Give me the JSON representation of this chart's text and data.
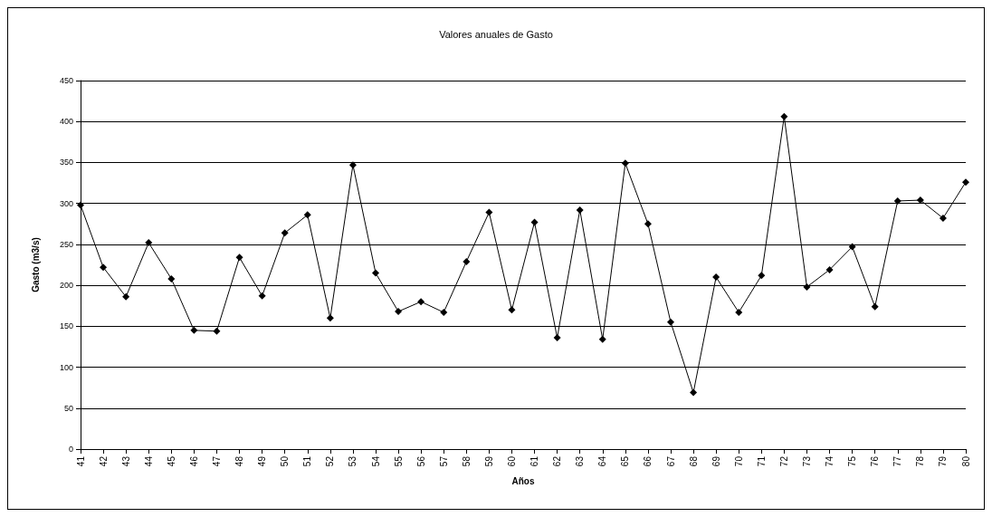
{
  "chart_data": {
    "type": "line",
    "title": "Valores anuales de Gasto",
    "xlabel": "Años",
    "ylabel": "Gasto (m3/s)",
    "categories": [
      "41",
      "42",
      "43",
      "44",
      "45",
      "46",
      "47",
      "48",
      "49",
      "50",
      "51",
      "52",
      "53",
      "54",
      "55",
      "56",
      "57",
      "58",
      "59",
      "60",
      "61",
      "62",
      "63",
      "64",
      "65",
      "66",
      "67",
      "68",
      "69",
      "70",
      "71",
      "72",
      "73",
      "74",
      "75",
      "76",
      "77",
      "78",
      "79",
      "80"
    ],
    "series": [
      {
        "color": "#000000",
        "values": [
          298,
          222,
          186,
          252,
          208,
          145,
          144,
          234,
          187,
          264,
          286,
          160,
          347,
          215,
          168,
          180,
          167,
          229,
          289,
          170,
          277,
          136,
          292,
          134,
          349,
          275,
          155,
          69,
          210,
          167,
          212,
          406,
          198,
          219,
          247,
          174,
          303,
          304,
          282,
          326
        ]
      }
    ],
    "ylim": [
      0,
      450
    ],
    "yticks": [
      0,
      50,
      100,
      150,
      200,
      250,
      300,
      350,
      400,
      450
    ],
    "grid": "y",
    "marker": "diamond",
    "line_style": "solid"
  }
}
